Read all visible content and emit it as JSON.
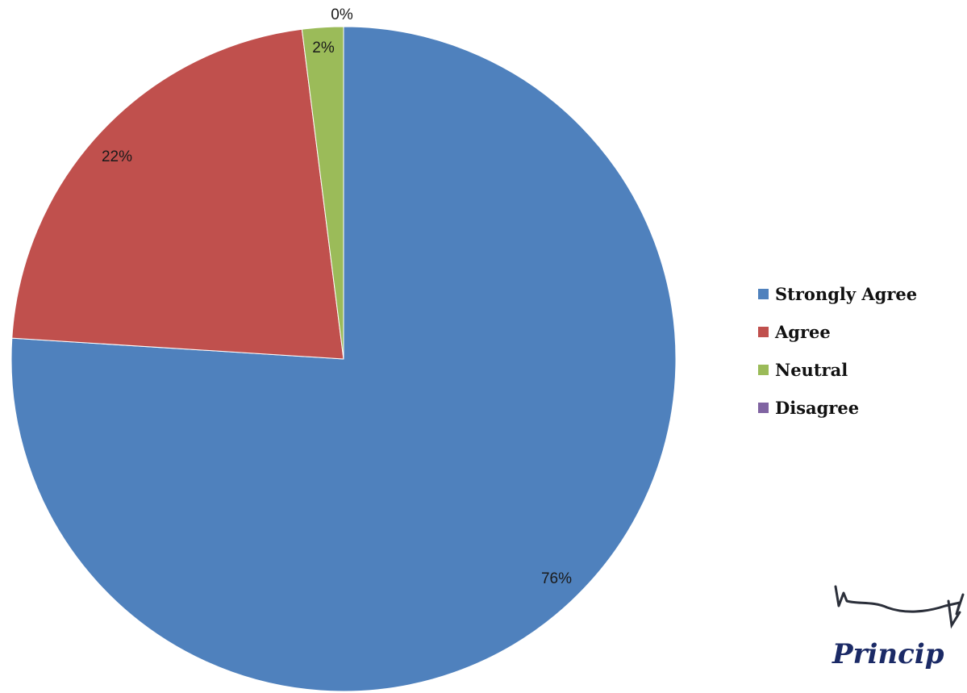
{
  "chart_data": {
    "type": "pie",
    "categories": [
      "Strongly Agree",
      "Agree",
      "Neutral",
      "Disagree"
    ],
    "values": [
      76,
      22,
      2,
      0
    ],
    "data_labels": [
      "76%",
      "22%",
      "2%",
      "0%"
    ],
    "colors": [
      "#4f81bd",
      "#c0504d",
      "#9bbb59",
      "#8064a2"
    ],
    "start_angle_deg": 0,
    "direction": "clockwise",
    "legend_position": "right"
  },
  "legend": {
    "items": [
      {
        "label": "Strongly Agree",
        "color": "#4f81bd"
      },
      {
        "label": "Agree",
        "color": "#c0504d"
      },
      {
        "label": "Neutral",
        "color": "#9bbb59"
      },
      {
        "label": "Disagree",
        "color": "#8064a2"
      }
    ]
  },
  "signature": {
    "text": "Princip"
  }
}
